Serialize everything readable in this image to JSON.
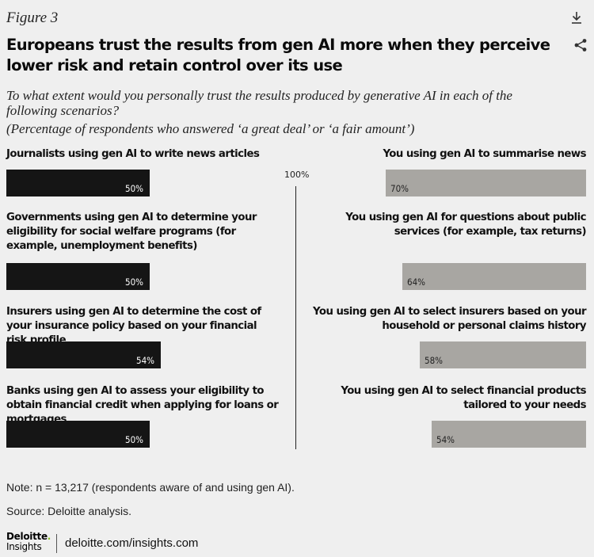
{
  "figure_label": "Figure 3",
  "title": "Europeans trust the results from gen AI more when they perceive lower risk and retain control over its use",
  "subtitle": "To what extent would you personally trust the results produced by generative AI in each of the following scenarios?",
  "subnote": "(Percentage of respondents who answered ‘a great deal’ or ‘a fair amount’)",
  "chart_data": {
    "type": "bar",
    "title": "Europeans trust the results from gen AI more when they perceive lower risk and retain control over its use",
    "axis_label": "100%",
    "xlim": [
      0,
      100
    ],
    "series": [
      {
        "categories": [
          "Journalists using gen AI to write news articles",
          "Governments using gen AI to determine your eligibility for social welfare programs (for example, unemployment benefits)",
          "Insurers using gen AI to determine the cost of your insurance policy based on your financial risk profile",
          "Banks using gen AI to assess your eligibility to obtain financial credit when applying for loans or mortgages"
        ],
        "values": [
          50,
          50,
          54,
          50
        ],
        "value_labels": [
          "50%",
          "50%",
          "54%",
          "50%"
        ],
        "color": "#151515"
      },
      {
        "categories": [
          "You using gen AI to summarise news",
          "You using gen AI for questions about public services (for example, tax returns)",
          "You using gen AI to select insurers based on your household or personal claims history",
          "You using gen AI to select financial products tailored to your needs"
        ],
        "values": [
          70,
          64,
          58,
          54
        ],
        "value_labels": [
          "70%",
          "64%",
          "58%",
          "54%"
        ],
        "color": "#a8a6a2"
      }
    ]
  },
  "note": "Note: n = 13,217 (respondents aware of and using gen AI).",
  "source": "Source: Deloitte analysis.",
  "brand": {
    "name": "Deloitte",
    "dot": ".",
    "sub": "Insights"
  },
  "site": "deloitte.com/insights.com",
  "icons": {
    "download": "download-icon",
    "share": "share-icon"
  }
}
